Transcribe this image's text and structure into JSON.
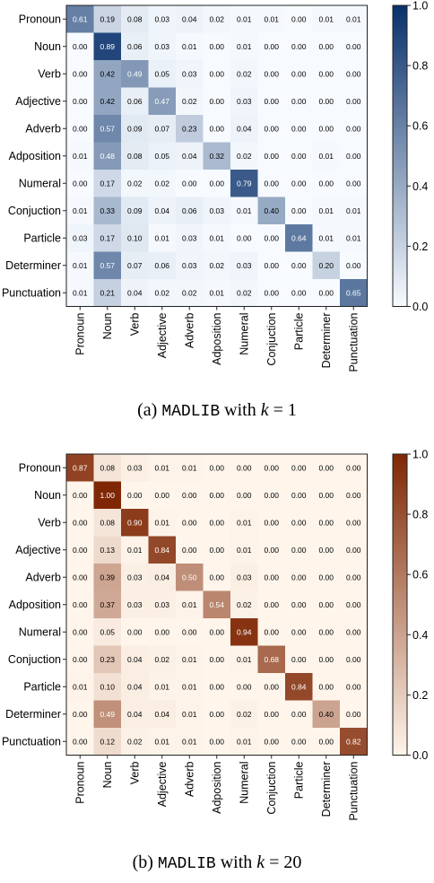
{
  "chart_data": [
    {
      "type": "heatmap",
      "caption": {
        "prefix": "(a)",
        "name": "MADLIB",
        "middle": "with",
        "var": "k",
        "eq": "= 1"
      },
      "colormap": "Blues",
      "colors": [
        "#f7fbff",
        "#08306b"
      ],
      "colorbar_ticks": [
        "0.0",
        "0.2",
        "0.4",
        "0.6",
        "0.8",
        "1.0"
      ],
      "vmin": 0,
      "vmax": 1,
      "rows": [
        "Pronoun",
        "Noun",
        "Verb",
        "Adjective",
        "Adverb",
        "Adposition",
        "Numeral",
        "Conjuction",
        "Particle",
        "Determiner",
        "Punctuation"
      ],
      "cols": [
        "Pronoun",
        "Noun",
        "Verb",
        "Adjective",
        "Adverb",
        "Adposition",
        "Numeral",
        "Conjuction",
        "Particle",
        "Determiner",
        "Punctuation"
      ],
      "values": [
        [
          "0.61",
          "0.19",
          "0.08",
          "0.03",
          "0.04",
          "0.02",
          "0.01",
          "0.01",
          "0.00",
          "0.01",
          "0.01"
        ],
        [
          "0.00",
          "0.89",
          "0.06",
          "0.03",
          "0.01",
          "0.00",
          "0.01",
          "0.00",
          "0.00",
          "0.00",
          "0.00"
        ],
        [
          "0.00",
          "0.42",
          "0.49",
          "0.05",
          "0.03",
          "0.00",
          "0.02",
          "0.00",
          "0.00",
          "0.00",
          "0.00"
        ],
        [
          "0.00",
          "0.42",
          "0.06",
          "0.47",
          "0.02",
          "0.00",
          "0.03",
          "0.00",
          "0.00",
          "0.00",
          "0.00"
        ],
        [
          "0.00",
          "0.57",
          "0.09",
          "0.07",
          "0.23",
          "0.00",
          "0.04",
          "0.00",
          "0.00",
          "0.00",
          "0.00"
        ],
        [
          "0.01",
          "0.48",
          "0.08",
          "0.05",
          "0.04",
          "0.32",
          "0.02",
          "0.00",
          "0.00",
          "0.01",
          "0.00"
        ],
        [
          "0.00",
          "0.17",
          "0.02",
          "0.02",
          "0.00",
          "0.00",
          "0.79",
          "0.00",
          "0.00",
          "0.00",
          "0.00"
        ],
        [
          "0.01",
          "0.33",
          "0.09",
          "0.04",
          "0.06",
          "0.03",
          "0.01",
          "0.40",
          "0.00",
          "0.01",
          "0.01"
        ],
        [
          "0.03",
          "0.17",
          "0.10",
          "0.01",
          "0.03",
          "0.01",
          "0.00",
          "0.00",
          "0.64",
          "0.01",
          "0.01"
        ],
        [
          "0.01",
          "0.57",
          "0.07",
          "0.06",
          "0.03",
          "0.02",
          "0.03",
          "0.00",
          "0.00",
          "0.20",
          "0.00"
        ],
        [
          "0.01",
          "0.21",
          "0.04",
          "0.02",
          "0.02",
          "0.01",
          "0.02",
          "0.00",
          "0.00",
          "0.00",
          "0.65"
        ]
      ]
    },
    {
      "type": "heatmap",
      "caption": {
        "prefix": "(b)",
        "name": "MADLIB",
        "middle": "with",
        "var": "k",
        "eq": "= 20"
      },
      "colormap": "Oranges",
      "colors": [
        "#fff5eb",
        "#7f2704"
      ],
      "colorbar_ticks": [
        "0.0",
        "0.2",
        "0.4",
        "0.6",
        "0.8",
        "1.0"
      ],
      "vmin": 0,
      "vmax": 1,
      "rows": [
        "Pronoun",
        "Noun",
        "Verb",
        "Adjective",
        "Adverb",
        "Adposition",
        "Numeral",
        "Conjuction",
        "Particle",
        "Determiner",
        "Punctuation"
      ],
      "cols": [
        "Pronoun",
        "Noun",
        "Verb",
        "Adjective",
        "Adverb",
        "Adposition",
        "Numeral",
        "Conjuction",
        "Particle",
        "Determiner",
        "Punctuation"
      ],
      "values": [
        [
          "0.87",
          "0.08",
          "0.03",
          "0.01",
          "0.01",
          "0.00",
          "0.00",
          "0.00",
          "0.00",
          "0.00",
          "0.00"
        ],
        [
          "0.00",
          "1.00",
          "0.00",
          "0.00",
          "0.00",
          "0.00",
          "0.00",
          "0.00",
          "0.00",
          "0.00",
          "0.00"
        ],
        [
          "0.00",
          "0.08",
          "0.90",
          "0.01",
          "0.00",
          "0.00",
          "0.01",
          "0.00",
          "0.00",
          "0.00",
          "0.00"
        ],
        [
          "0.00",
          "0.13",
          "0.01",
          "0.84",
          "0.00",
          "0.00",
          "0.01",
          "0.00",
          "0.00",
          "0.00",
          "0.00"
        ],
        [
          "0.00",
          "0.39",
          "0.03",
          "0.04",
          "0.50",
          "0.00",
          "0.03",
          "0.00",
          "0.00",
          "0.00",
          "0.00"
        ],
        [
          "0.00",
          "0.37",
          "0.03",
          "0.03",
          "0.01",
          "0.54",
          "0.02",
          "0.00",
          "0.00",
          "0.00",
          "0.00"
        ],
        [
          "0.00",
          "0.05",
          "0.00",
          "0.00",
          "0.00",
          "0.00",
          "0.94",
          "0.00",
          "0.00",
          "0.00",
          "0.00"
        ],
        [
          "0.00",
          "0.23",
          "0.04",
          "0.02",
          "0.01",
          "0.00",
          "0.01",
          "0.68",
          "0.00",
          "0.00",
          "0.00"
        ],
        [
          "0.01",
          "0.10",
          "0.04",
          "0.01",
          "0.01",
          "0.00",
          "0.00",
          "0.00",
          "0.84",
          "0.00",
          "0.00"
        ],
        [
          "0.00",
          "0.49",
          "0.04",
          "0.04",
          "0.01",
          "0.00",
          "0.02",
          "0.00",
          "0.00",
          "0.40",
          "0.00"
        ],
        [
          "0.00",
          "0.12",
          "0.02",
          "0.01",
          "0.01",
          "0.00",
          "0.01",
          "0.00",
          "0.00",
          "0.00",
          "0.82"
        ]
      ]
    }
  ]
}
